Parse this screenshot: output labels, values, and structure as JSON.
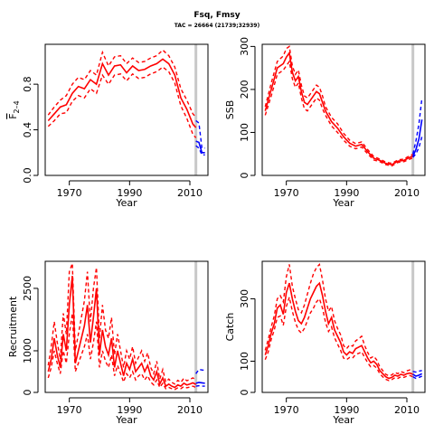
{
  "title": "Fsq, Fmsy",
  "subtitle": "TAC = 26664 (21739;32939)",
  "colors": {
    "historic": "#ff0000",
    "forecast": "#0000ff",
    "ref_line": "#c8c8c8"
  },
  "chart_data": [
    {
      "type": "line",
      "panel": "F",
      "xlabel": "Year",
      "ylabel": "F̄2–4",
      "ylabel_main": "F",
      "ylabel_sub": "2–4",
      "xlim": [
        1962,
        2016
      ],
      "ylim": [
        0,
        1.15
      ],
      "x_ticks": [
        1970,
        1990,
        2010
      ],
      "y_ticks": [
        0,
        0.4,
        0.8
      ],
      "y_tick_labels": [
        "0.0",
        "0.4",
        "0.8"
      ],
      "ref_year": 2012,
      "historic": {
        "x": [
          1963,
          1965,
          1967,
          1969,
          1971,
          1973,
          1975,
          1977,
          1979,
          1981,
          1983,
          1985,
          1987,
          1989,
          1991,
          1993,
          1995,
          1997,
          1999,
          2001,
          2003,
          2005,
          2007,
          2009,
          2011,
          2012
        ],
        "mid": [
          0.48,
          0.54,
          0.6,
          0.62,
          0.72,
          0.78,
          0.76,
          0.84,
          0.8,
          0.98,
          0.88,
          0.96,
          0.97,
          0.9,
          0.96,
          0.92,
          0.93,
          0.96,
          0.98,
          1.02,
          0.98,
          0.88,
          0.68,
          0.58,
          0.45,
          0.42
        ],
        "lo": [
          0.43,
          0.48,
          0.54,
          0.55,
          0.65,
          0.7,
          0.68,
          0.76,
          0.72,
          0.88,
          0.8,
          0.88,
          0.89,
          0.83,
          0.89,
          0.85,
          0.86,
          0.89,
          0.91,
          0.95,
          0.91,
          0.81,
          0.61,
          0.5,
          0.36,
          0.33
        ],
        "hi": [
          0.53,
          0.6,
          0.66,
          0.7,
          0.8,
          0.86,
          0.84,
          0.92,
          0.88,
          1.08,
          0.96,
          1.04,
          1.05,
          0.98,
          1.03,
          0.99,
          1.0,
          1.03,
          1.05,
          1.1,
          1.05,
          0.95,
          0.76,
          0.66,
          0.54,
          0.51
        ]
      },
      "forecast": {
        "x": [
          2012,
          2013,
          2014,
          2015
        ],
        "mid": [
          0.3,
          0.29,
          0.2,
          0.2
        ],
        "lo": [
          0.26,
          0.24,
          0.18,
          0.18
        ],
        "hi": [
          0.48,
          0.46,
          0.24,
          0.24
        ]
      }
    },
    {
      "type": "line",
      "panel": "SSB",
      "xlabel": "Year",
      "ylabel": "SSB",
      "xlim": [
        1962,
        2016
      ],
      "ylim": [
        0,
        305
      ],
      "x_ticks": [
        1970,
        1990,
        2010
      ],
      "y_ticks": [
        0,
        100,
        200,
        300
      ],
      "y_tick_labels": [
        "0",
        "100",
        "200",
        "300"
      ],
      "ref_year": 2012,
      "historic": {
        "x": [
          1963,
          1965,
          1967,
          1969,
          1970,
          1971,
          1972,
          1973,
          1974,
          1975,
          1976,
          1977,
          1978,
          1979,
          1980,
          1981,
          1982,
          1983,
          1985,
          1987,
          1989,
          1991,
          1993,
          1995,
          1997,
          1999,
          2001,
          2003,
          2005,
          2007,
          2009,
          2011,
          2012
        ],
        "mid": [
          150,
          200,
          250,
          260,
          275,
          285,
          240,
          220,
          230,
          195,
          170,
          165,
          175,
          185,
          195,
          190,
          170,
          150,
          125,
          110,
          90,
          75,
          68,
          72,
          55,
          40,
          35,
          28,
          25,
          33,
          35,
          42,
          45
        ],
        "lo": [
          140,
          185,
          235,
          245,
          255,
          265,
          225,
          205,
          215,
          180,
          155,
          150,
          160,
          170,
          180,
          175,
          155,
          140,
          115,
          100,
          82,
          68,
          62,
          66,
          50,
          36,
          32,
          25,
          22,
          30,
          32,
          38,
          41
        ],
        "hi": [
          160,
          215,
          265,
          278,
          295,
          300,
          255,
          235,
          245,
          210,
          185,
          180,
          190,
          200,
          210,
          205,
          185,
          160,
          135,
          120,
          98,
          82,
          74,
          78,
          60,
          44,
          38,
          31,
          28,
          36,
          38,
          46,
          49
        ]
      },
      "forecast": {
        "x": [
          2012,
          2013,
          2014,
          2015
        ],
        "mid": [
          45,
          60,
          85,
          130
        ],
        "lo": [
          42,
          50,
          65,
          90
        ],
        "hi": [
          50,
          80,
          120,
          180
        ]
      }
    },
    {
      "type": "line",
      "panel": "Recruitment",
      "xlabel": "Year",
      "ylabel": "Recruitment",
      "xlim": [
        1962,
        2016
      ],
      "ylim": [
        0,
        3150
      ],
      "x_ticks": [
        1970,
        1990,
        2010
      ],
      "y_ticks": [
        0,
        1000,
        2500
      ],
      "y_tick_labels": [
        "0",
        "1000",
        "2500"
      ],
      "ref_year": 2012,
      "historic": {
        "x": [
          1963,
          1964,
          1965,
          1966,
          1967,
          1968,
          1969,
          1970,
          1971,
          1972,
          1973,
          1974,
          1975,
          1976,
          1977,
          1978,
          1979,
          1980,
          1981,
          1982,
          1983,
          1984,
          1985,
          1986,
          1987,
          1988,
          1989,
          1990,
          1991,
          1992,
          1993,
          1994,
          1995,
          1996,
          1997,
          1998,
          1999,
          2000,
          2001,
          2002,
          2003,
          2004,
          2005,
          2006,
          2007,
          2008,
          2009,
          2010,
          2011,
          2012
        ],
        "mid": [
          500,
          800,
          1300,
          900,
          600,
          1400,
          1000,
          2100,
          2800,
          700,
          1000,
          1300,
          1600,
          2100,
          1200,
          1800,
          2500,
          900,
          1500,
          1100,
          900,
          1300,
          600,
          1000,
          700,
          400,
          700,
          550,
          800,
          500,
          600,
          700,
          500,
          650,
          400,
          300,
          500,
          200,
          350,
          150,
          200,
          150,
          120,
          180,
          150,
          220,
          180,
          200,
          230,
          190
        ],
        "lo": [
          350,
          600,
          1000,
          700,
          450,
          1000,
          700,
          1400,
          1900,
          500,
          700,
          900,
          1100,
          1400,
          800,
          1200,
          1700,
          600,
          1000,
          750,
          600,
          900,
          400,
          650,
          450,
          250,
          450,
          350,
          500,
          300,
          400,
          450,
          300,
          400,
          250,
          180,
          300,
          120,
          220,
          90,
          120,
          90,
          70,
          110,
          90,
          140,
          110,
          130,
          150,
          120
        ],
        "hi": [
          650,
          1100,
          1700,
          1200,
          800,
          1900,
          1400,
          2900,
          3100,
          1000,
          1400,
          1800,
          2200,
          2900,
          1700,
          2500,
          3000,
          1300,
          2100,
          1500,
          1300,
          1800,
          900,
          1400,
          1000,
          600,
          1000,
          800,
          1100,
          700,
          850,
          1000,
          750,
          950,
          600,
          450,
          750,
          320,
          550,
          250,
          320,
          240,
          200,
          290,
          240,
          340,
          280,
          310,
          350,
          300
        ]
      },
      "forecast": {
        "x": [
          2012,
          2013,
          2014,
          2015
        ],
        "mid": [
          220,
          240,
          230,
          220
        ],
        "lo": [
          150,
          160,
          150,
          150
        ],
        "hi": [
          450,
          550,
          540,
          530
        ]
      }
    },
    {
      "type": "line",
      "panel": "Catch",
      "xlabel": "Year",
      "ylabel": "Catch",
      "xlim": [
        1962,
        2016
      ],
      "ylim": [
        0,
        420
      ],
      "x_ticks": [
        1970,
        1990,
        2010
      ],
      "y_ticks": [
        0,
        100,
        300
      ],
      "y_tick_labels": [
        "0",
        "100",
        "300"
      ],
      "ref_year": 2012,
      "historic": {
        "x": [
          1963,
          1964,
          1965,
          1966,
          1967,
          1968,
          1969,
          1970,
          1971,
          1972,
          1973,
          1974,
          1975,
          1976,
          1977,
          1978,
          1979,
          1980,
          1981,
          1982,
          1983,
          1984,
          1985,
          1986,
          1987,
          1988,
          1989,
          1990,
          1991,
          1992,
          1993,
          1994,
          1995,
          1996,
          1997,
          1998,
          1999,
          2000,
          2001,
          2002,
          2003,
          2004,
          2005,
          2006,
          2007,
          2008,
          2009,
          2010,
          2011,
          2012
        ],
        "mid": [
          120,
          150,
          190,
          220,
          270,
          280,
          250,
          320,
          350,
          300,
          260,
          230,
          220,
          240,
          270,
          300,
          320,
          340,
          350,
          310,
          260,
          220,
          240,
          200,
          180,
          160,
          130,
          120,
          130,
          125,
          140,
          145,
          150,
          130,
          110,
          95,
          100,
          90,
          70,
          60,
          50,
          45,
          48,
          55,
          52,
          58,
          55,
          60,
          62,
          58
        ],
        "lo": [
          105,
          130,
          170,
          200,
          240,
          245,
          215,
          275,
          305,
          260,
          225,
          200,
          190,
          205,
          230,
          255,
          270,
          290,
          300,
          270,
          225,
          195,
          210,
          175,
          155,
          135,
          110,
          105,
          112,
          110,
          122,
          125,
          130,
          112,
          95,
          82,
          86,
          78,
          60,
          50,
          42,
          38,
          41,
          47,
          45,
          50,
          48,
          52,
          54,
          50
        ],
        "hi": [
          135,
          170,
          210,
          245,
          300,
          310,
          290,
          370,
          410,
          340,
          300,
          265,
          255,
          280,
          315,
          350,
          380,
          400,
          410,
          360,
          300,
          260,
          275,
          230,
          205,
          185,
          150,
          140,
          152,
          148,
          165,
          172,
          180,
          150,
          128,
          110,
          116,
          104,
          82,
          70,
          58,
          53,
          56,
          64,
          60,
          67,
          63,
          69,
          72,
          67
        ]
      },
      "forecast": {
        "x": [
          2012,
          2013,
          2014,
          2015
        ],
        "mid": [
          58,
          52,
          55,
          60
        ],
        "lo": [
          50,
          45,
          48,
          52
        ],
        "hi": [
          67,
          65,
          68,
          70
        ]
      }
    }
  ]
}
